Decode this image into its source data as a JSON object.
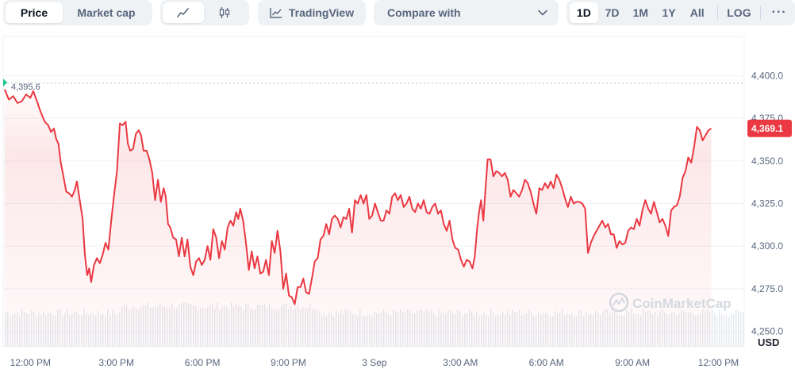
{
  "toolbar": {
    "price_label": "Price",
    "market_cap_label": "Market cap",
    "line_icon": "line-chart-icon",
    "candle_icon": "candlestick-icon",
    "tradingview_label": "TradingView",
    "tradingview_icon": "trend-chart-icon",
    "compare_label": "Compare with",
    "compare_icon": "chevron-down-icon",
    "ranges": [
      "1D",
      "7D",
      "1M",
      "1Y",
      "All"
    ],
    "active_range": "1D",
    "log_label": "LOG",
    "more_label": "···"
  },
  "chart": {
    "currency_label": "USD",
    "reference_label": "4,395.6",
    "current_price_label": "4,369.1",
    "watermark": "CoinMarketCap",
    "colors": {
      "line": "#ea3943",
      "tag": "#ea3943",
      "fill_top": "#ea3943",
      "volume": "#e4e8ee",
      "grid": "#eff2f5",
      "reference_dot": "#16c784"
    }
  },
  "chart_data": {
    "type": "area",
    "title": "",
    "xlabel": "",
    "ylabel": "",
    "currency": "USD",
    "x_ticks": [
      "12:00 PM",
      "3:00 PM",
      "6:00 PM",
      "9:00 PM",
      "3 Sep",
      "3:00 AM",
      "6:00 AM",
      "9:00 AM",
      "12:00 PM"
    ],
    "x_tick_hours": [
      0,
      3,
      6,
      9,
      12,
      15,
      18,
      21,
      24
    ],
    "y_ticks": [
      4250.0,
      4275.0,
      4300.0,
      4325.0,
      4350.0,
      4375.0,
      4400.0
    ],
    "y_tick_labels": [
      "4,250.0",
      "4,275.0",
      "4,300.0",
      "4,325.0",
      "4,350.0",
      "4,375.0",
      "4,400.0"
    ],
    "ylim": [
      4241,
      4423
    ],
    "xlim": [
      -0.95,
      24.9
    ],
    "reference_value": 4395.6,
    "current_value": 4369.1,
    "series": [
      {
        "values": [
          [
            -0.9,
            4392
          ],
          [
            -0.75,
            4386
          ],
          [
            -0.6,
            4388
          ],
          [
            -0.45,
            4384
          ],
          [
            -0.3,
            4385
          ],
          [
            -0.15,
            4389
          ],
          [
            0.0,
            4387
          ],
          [
            0.1,
            4391
          ],
          [
            0.25,
            4384
          ],
          [
            0.35,
            4379
          ],
          [
            0.5,
            4373
          ],
          [
            0.62,
            4371
          ],
          [
            0.72,
            4367
          ],
          [
            0.82,
            4369
          ],
          [
            0.9,
            4363
          ],
          [
            0.98,
            4360
          ],
          [
            1.05,
            4350
          ],
          [
            1.15,
            4341
          ],
          [
            1.25,
            4332
          ],
          [
            1.35,
            4331
          ],
          [
            1.45,
            4329
          ],
          [
            1.55,
            4333
          ],
          [
            1.62,
            4338
          ],
          [
            1.72,
            4327
          ],
          [
            1.82,
            4316
          ],
          [
            1.9,
            4295
          ],
          [
            1.98,
            4283
          ],
          [
            2.05,
            4287
          ],
          [
            2.12,
            4279
          ],
          [
            2.22,
            4289
          ],
          [
            2.32,
            4293
          ],
          [
            2.42,
            4290
          ],
          [
            2.52,
            4295
          ],
          [
            2.62,
            4302
          ],
          [
            2.72,
            4298
          ],
          [
            2.82,
            4315
          ],
          [
            2.92,
            4330
          ],
          [
            3.02,
            4344
          ],
          [
            3.12,
            4372
          ],
          [
            3.22,
            4371
          ],
          [
            3.32,
            4373
          ],
          [
            3.4,
            4360
          ],
          [
            3.48,
            4356
          ],
          [
            3.58,
            4357
          ],
          [
            3.68,
            4366
          ],
          [
            3.78,
            4368
          ],
          [
            3.86,
            4365
          ],
          [
            3.95,
            4356
          ],
          [
            4.05,
            4356
          ],
          [
            4.15,
            4351
          ],
          [
            4.25,
            4343
          ],
          [
            4.35,
            4327
          ],
          [
            4.45,
            4339
          ],
          [
            4.55,
            4326
          ],
          [
            4.65,
            4334
          ],
          [
            4.72,
            4329
          ],
          [
            4.8,
            4313
          ],
          [
            4.88,
            4311
          ],
          [
            4.98,
            4305
          ],
          [
            5.08,
            4304
          ],
          [
            5.18,
            4294
          ],
          [
            5.28,
            4305
          ],
          [
            5.38,
            4294
          ],
          [
            5.48,
            4304
          ],
          [
            5.58,
            4288
          ],
          [
            5.68,
            4283
          ],
          [
            5.78,
            4291
          ],
          [
            5.88,
            4293
          ],
          [
            5.98,
            4289
          ],
          [
            6.08,
            4292
          ],
          [
            6.18,
            4300
          ],
          [
            6.28,
            4292
          ],
          [
            6.38,
            4310
          ],
          [
            6.48,
            4305
          ],
          [
            6.58,
            4293
          ],
          [
            6.68,
            4303
          ],
          [
            6.78,
            4298
          ],
          [
            6.88,
            4311
          ],
          [
            6.98,
            4315
          ],
          [
            7.08,
            4312
          ],
          [
            7.18,
            4320
          ],
          [
            7.25,
            4316
          ],
          [
            7.32,
            4322
          ],
          [
            7.42,
            4315
          ],
          [
            7.52,
            4302
          ],
          [
            7.62,
            4286
          ],
          [
            7.72,
            4297
          ],
          [
            7.82,
            4287
          ],
          [
            7.92,
            4294
          ],
          [
            8.02,
            4284
          ],
          [
            8.12,
            4285
          ],
          [
            8.22,
            4292
          ],
          [
            8.32,
            4283
          ],
          [
            8.42,
            4303
          ],
          [
            8.52,
            4296
          ],
          [
            8.62,
            4309
          ],
          [
            8.72,
            4297
          ],
          [
            8.82,
            4275
          ],
          [
            8.92,
            4284
          ],
          [
            9.02,
            4271
          ],
          [
            9.12,
            4270
          ],
          [
            9.22,
            4266
          ],
          [
            9.32,
            4276
          ],
          [
            9.42,
            4276
          ],
          [
            9.52,
            4281
          ],
          [
            9.62,
            4273
          ],
          [
            9.72,
            4272
          ],
          [
            9.82,
            4281
          ],
          [
            9.92,
            4291
          ],
          [
            10.02,
            4293
          ],
          [
            10.12,
            4304
          ],
          [
            10.22,
            4306
          ],
          [
            10.32,
            4313
          ],
          [
            10.42,
            4307
          ],
          [
            10.52,
            4316
          ],
          [
            10.62,
            4318
          ],
          [
            10.72,
            4316
          ],
          [
            10.82,
            4311
          ],
          [
            10.92,
            4317
          ],
          [
            11.02,
            4316
          ],
          [
            11.12,
            4322
          ],
          [
            11.22,
            4308
          ],
          [
            11.32,
            4327
          ],
          [
            11.42,
            4325
          ],
          [
            11.52,
            4330
          ],
          [
            11.62,
            4325
          ],
          [
            11.72,
            4330
          ],
          [
            11.82,
            4316
          ],
          [
            11.92,
            4318
          ],
          [
            12.02,
            4325
          ],
          [
            12.12,
            4320
          ],
          [
            12.22,
            4315
          ],
          [
            12.32,
            4315
          ],
          [
            12.42,
            4321
          ],
          [
            12.52,
            4319
          ],
          [
            12.62,
            4329
          ],
          [
            12.72,
            4331
          ],
          [
            12.82,
            4327
          ],
          [
            12.92,
            4330
          ],
          [
            13.02,
            4323
          ],
          [
            13.12,
            4325
          ],
          [
            13.22,
            4329
          ],
          [
            13.32,
            4322
          ],
          [
            13.42,
            4320
          ],
          [
            13.52,
            4325
          ],
          [
            13.62,
            4322
          ],
          [
            13.72,
            4327
          ],
          [
            13.82,
            4320
          ],
          [
            13.92,
            4319
          ],
          [
            14.02,
            4323
          ],
          [
            14.12,
            4325
          ],
          [
            14.22,
            4319
          ],
          [
            14.32,
            4321
          ],
          [
            14.42,
            4313
          ],
          [
            14.52,
            4309
          ],
          [
            14.62,
            4315
          ],
          [
            14.72,
            4304
          ],
          [
            14.82,
            4299
          ],
          [
            14.92,
            4298
          ],
          [
            15.02,
            4292
          ],
          [
            15.12,
            4288
          ],
          [
            15.22,
            4292
          ],
          [
            15.32,
            4291
          ],
          [
            15.42,
            4287
          ],
          [
            15.5,
            4294
          ],
          [
            15.58,
            4310
          ],
          [
            15.65,
            4320
          ],
          [
            15.72,
            4327
          ],
          [
            15.8,
            4315
          ],
          [
            15.88,
            4335
          ],
          [
            15.95,
            4351
          ],
          [
            16.05,
            4351
          ],
          [
            16.15,
            4341
          ],
          [
            16.25,
            4344
          ],
          [
            16.35,
            4343
          ],
          [
            16.45,
            4341
          ],
          [
            16.55,
            4343
          ],
          [
            16.65,
            4339
          ],
          [
            16.75,
            4329
          ],
          [
            16.85,
            4333
          ],
          [
            16.95,
            4331
          ],
          [
            17.05,
            4329
          ],
          [
            17.15,
            4333
          ],
          [
            17.25,
            4339
          ],
          [
            17.35,
            4337
          ],
          [
            17.45,
            4332
          ],
          [
            17.55,
            4325
          ],
          [
            17.65,
            4319
          ],
          [
            17.75,
            4334
          ],
          [
            17.85,
            4333
          ],
          [
            17.95,
            4337
          ],
          [
            18.05,
            4334
          ],
          [
            18.15,
            4338
          ],
          [
            18.25,
            4334
          ],
          [
            18.35,
            4342
          ],
          [
            18.45,
            4339
          ],
          [
            18.55,
            4334
          ],
          [
            18.65,
            4328
          ],
          [
            18.75,
            4323
          ],
          [
            18.85,
            4329
          ],
          [
            18.95,
            4325
          ],
          [
            19.05,
            4326
          ],
          [
            19.15,
            4326
          ],
          [
            19.25,
            4325
          ],
          [
            19.35,
            4322
          ],
          [
            19.45,
            4296
          ],
          [
            19.55,
            4302
          ],
          [
            19.65,
            4306
          ],
          [
            19.75,
            4309
          ],
          [
            19.85,
            4312
          ],
          [
            19.95,
            4315
          ],
          [
            20.05,
            4311
          ],
          [
            20.15,
            4313
          ],
          [
            20.25,
            4307
          ],
          [
            20.35,
            4307
          ],
          [
            20.45,
            4299
          ],
          [
            20.55,
            4303
          ],
          [
            20.65,
            4301
          ],
          [
            20.75,
            4302
          ],
          [
            20.85,
            4309
          ],
          [
            20.95,
            4311
          ],
          [
            21.05,
            4310
          ],
          [
            21.15,
            4316
          ],
          [
            21.25,
            4312
          ],
          [
            21.35,
            4321
          ],
          [
            21.45,
            4327
          ],
          [
            21.55,
            4322
          ],
          [
            21.65,
            4319
          ],
          [
            21.75,
            4326
          ],
          [
            21.85,
            4320
          ],
          [
            21.95,
            4314
          ],
          [
            22.05,
            4316
          ],
          [
            22.15,
            4312
          ],
          [
            22.25,
            4306
          ],
          [
            22.35,
            4321
          ],
          [
            22.45,
            4323
          ],
          [
            22.55,
            4324
          ],
          [
            22.65,
            4329
          ],
          [
            22.75,
            4340
          ],
          [
            22.85,
            4344
          ],
          [
            22.95,
            4352
          ],
          [
            23.05,
            4349
          ],
          [
            23.15,
            4358
          ],
          [
            23.25,
            4370
          ],
          [
            23.35,
            4368
          ],
          [
            23.45,
            4362
          ],
          [
            23.55,
            4365
          ],
          [
            23.65,
            4368
          ],
          [
            23.75,
            4369
          ]
        ]
      }
    ],
    "legend": "none",
    "grid": true
  }
}
